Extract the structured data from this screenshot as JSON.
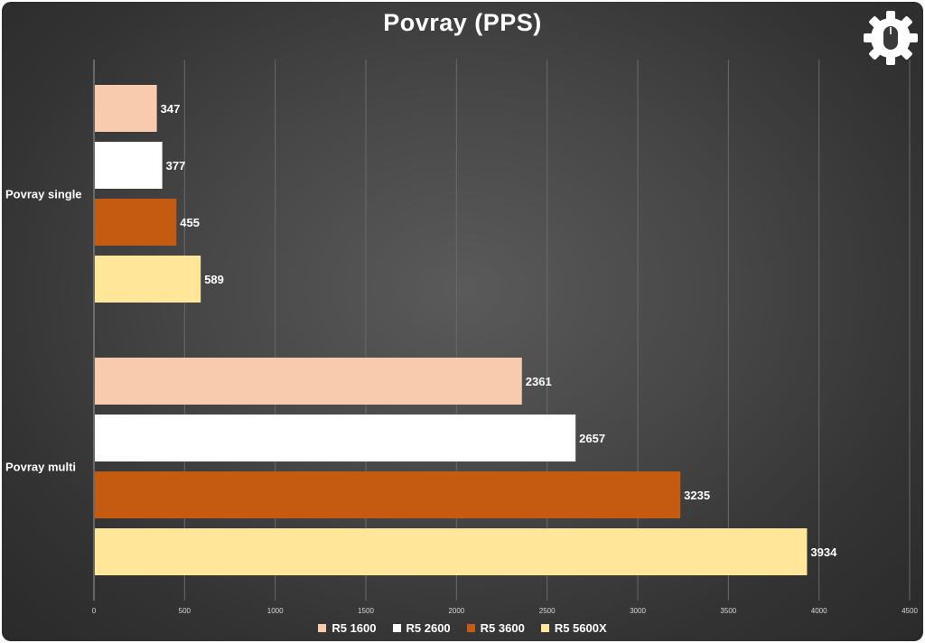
{
  "chart_data": {
    "type": "bar",
    "orientation": "horizontal",
    "title": "Povray (PPS)",
    "categories": [
      "Povray single",
      "Povray multi"
    ],
    "series": [
      {
        "name": "R5 1600",
        "color": "#f8cbad",
        "values": [
          347,
          2361
        ]
      },
      {
        "name": "R5 2600",
        "color": "#ffffff",
        "values": [
          377,
          2657
        ]
      },
      {
        "name": "R5 3600",
        "color": "#c55a11",
        "values": [
          455,
          3235
        ]
      },
      {
        "name": "R5 5600X",
        "color": "#ffe699",
        "values": [
          589,
          3934
        ]
      }
    ],
    "xlim": [
      0,
      4500
    ],
    "xticks": [
      0,
      500,
      1000,
      1500,
      2000,
      2500,
      3000,
      3500,
      4000,
      4500
    ],
    "grid": true,
    "legend_position": "bottom",
    "data_labels": true
  },
  "logo": {
    "icon": "gear-mouse-icon"
  }
}
